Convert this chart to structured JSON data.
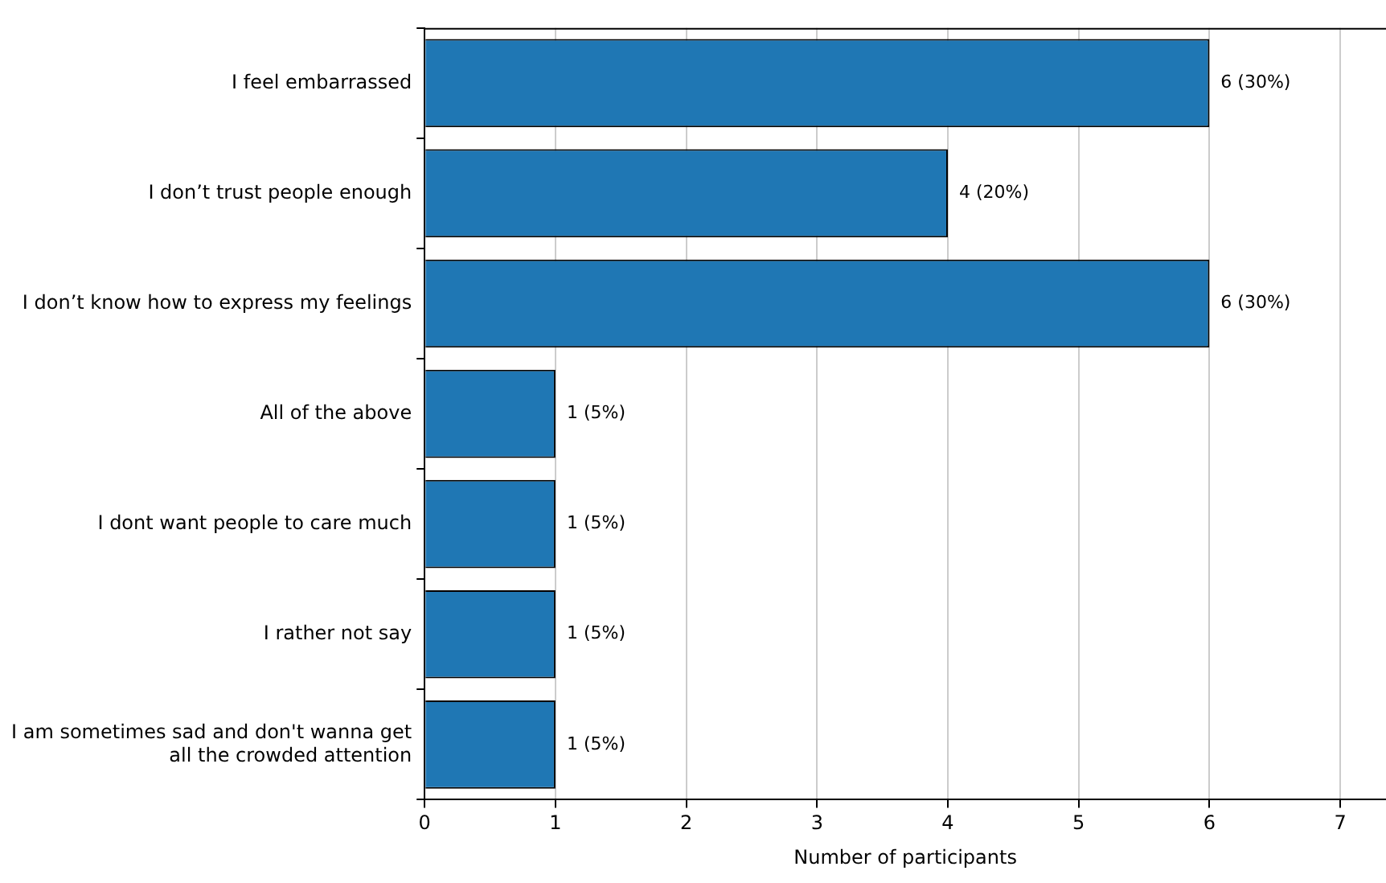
{
  "chart_data": {
    "type": "bar",
    "orientation": "horizontal",
    "xlabel": "Number of participants",
    "categories": [
      "I feel embarrassed",
      "I don’t trust people enough",
      "I don’t know how to express my feelings",
      "All of the above",
      "I dont want people to care much",
      "I rather not say",
      "I am sometimes sad and don't wanna get all the crowded attention"
    ],
    "values": [
      6,
      4,
      6,
      1,
      1,
      1,
      1
    ],
    "value_labels": [
      "6 (30%)",
      "4 (20%)",
      "6 (30%)",
      "1 (5%)",
      "1 (5%)",
      "1 (5%)",
      "1 (5%)"
    ],
    "color": "#1f77b4",
    "xlim": [
      0,
      7.35
    ],
    "xticks": [
      0,
      1,
      2,
      3,
      4,
      5,
      6,
      7
    ],
    "grid": "x",
    "legend": false
  }
}
